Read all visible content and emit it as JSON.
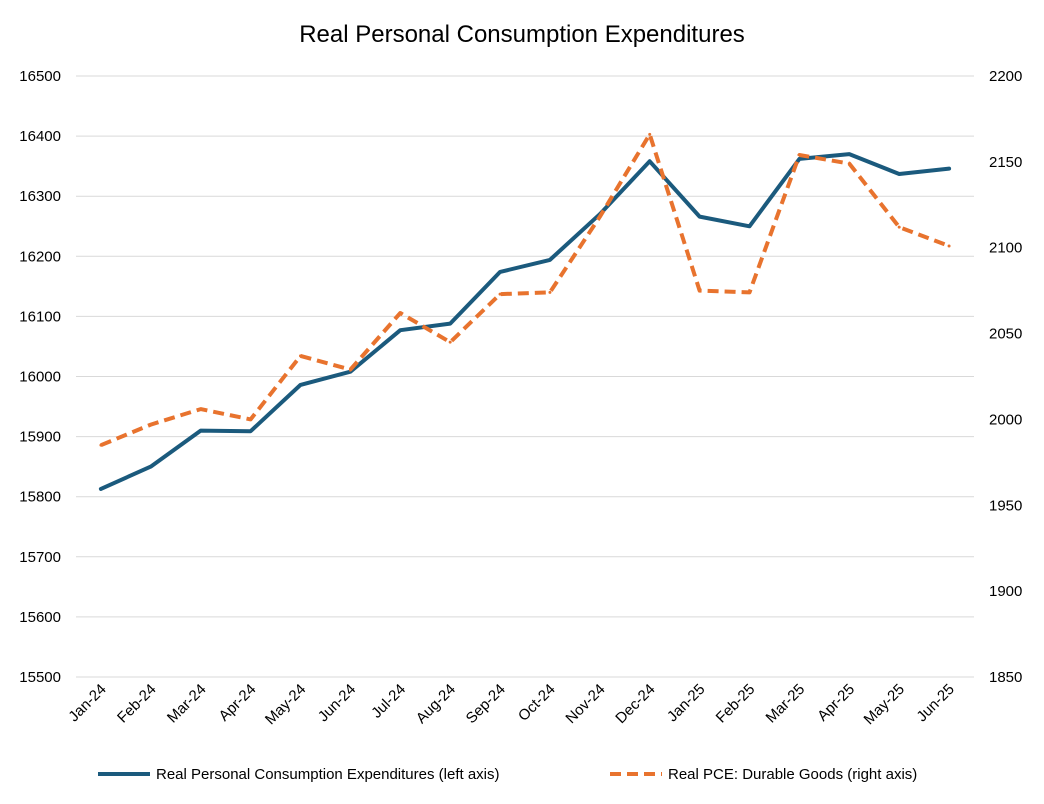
{
  "chart_data": {
    "type": "line",
    "title": "Real Personal Consumption Expenditures",
    "categories": [
      "Jan-24",
      "Feb-24",
      "Mar-24",
      "Apr-24",
      "May-24",
      "Jun-24",
      "Jul-24",
      "Aug-24",
      "Sep-24",
      "Oct-24",
      "Nov-24",
      "Dec-24",
      "Jan-25",
      "Feb-25",
      "Mar-25",
      "Apr-25",
      "May-25",
      "Jun-25"
    ],
    "left_axis": {
      "ylim": [
        15500,
        16500
      ],
      "ticks": [
        "16500",
        "16400",
        "16300",
        "16200",
        "16100",
        "16000",
        "15900",
        "15800",
        "15700",
        "15600",
        "15500"
      ]
    },
    "right_axis": {
      "ylim": [
        1850,
        2200
      ],
      "ticks": [
        "2200",
        "2150",
        "2100",
        "2050",
        "2000",
        "1950",
        "1900",
        "1850"
      ]
    },
    "series": [
      {
        "name": "Real Personal Consumption Expenditures (left axis)",
        "axis": "left",
        "style": "solid",
        "color": "#1b5a7d",
        "values": [
          15813,
          15850,
          15910,
          15909,
          15986,
          16008,
          16077,
          16088,
          16174,
          16194,
          16270,
          16358,
          16266,
          16250,
          16362,
          16370,
          16337,
          16346
        ]
      },
      {
        "name": "Real PCE: Durable Goods (right axis)",
        "axis": "right",
        "style": "dashed",
        "color": "#e8732e",
        "values": [
          1985,
          1997,
          2006,
          2000,
          2037,
          2029,
          2062,
          2045,
          2073,
          2074,
          2118,
          2166,
          2075,
          2074,
          2154,
          2149,
          2112,
          2101
        ]
      }
    ],
    "grid": true,
    "legend_position": "bottom"
  }
}
